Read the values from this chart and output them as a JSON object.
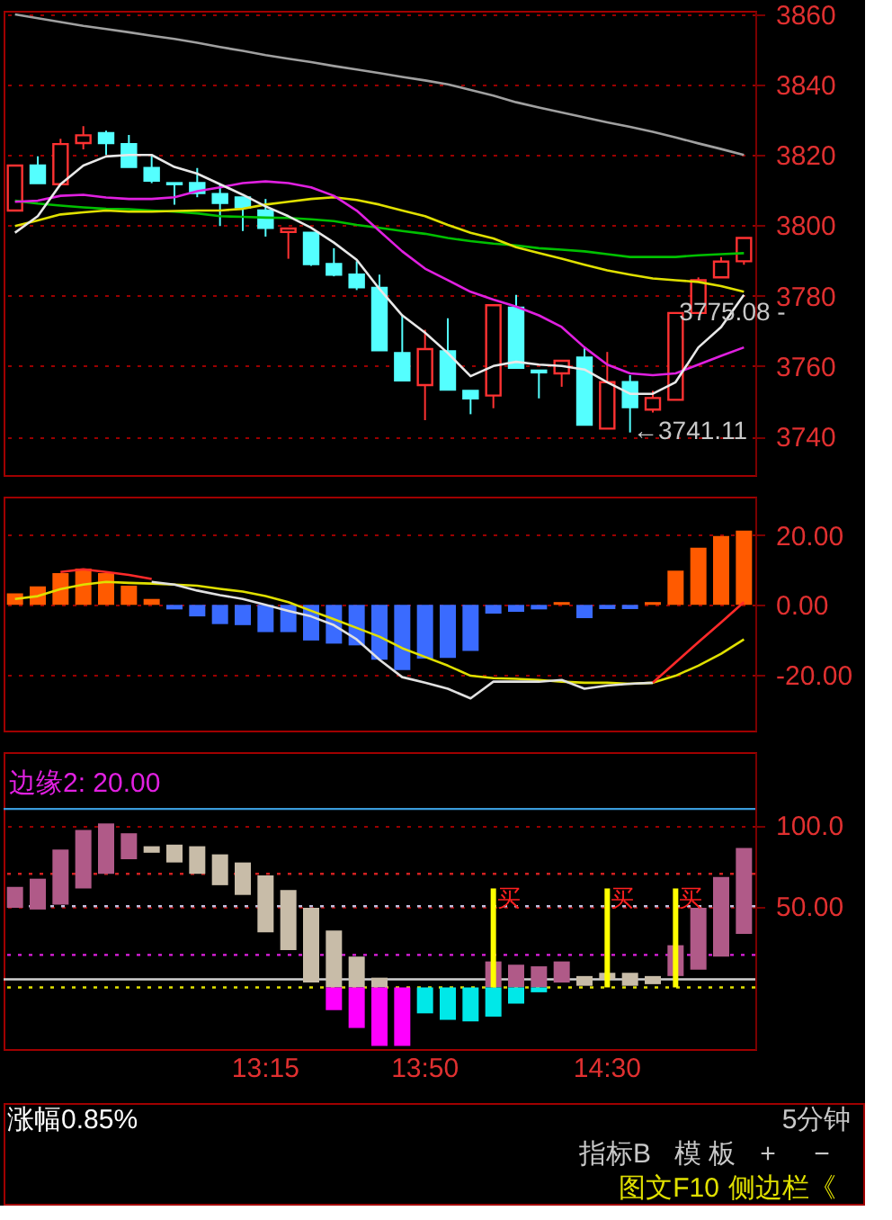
{
  "chart_data": [
    {
      "type": "candlestick",
      "categories": [
        null,
        null,
        null,
        null,
        null,
        null,
        null,
        null,
        null,
        null,
        null,
        null,
        null,
        null,
        null,
        null,
        null,
        null,
        null,
        null,
        null,
        null,
        null,
        null,
        null,
        null,
        null,
        null,
        null,
        null,
        null,
        null,
        null
      ],
      "ohlc": [
        [
          3804.2,
          3817.0,
          3804.2,
          3817.0
        ],
        [
          3817.0,
          3819.6,
          3812.0,
          3812.0
        ],
        [
          3811.7,
          3824.6,
          3811.7,
          3823.1
        ],
        [
          3823.4,
          3828.2,
          3821.6,
          3825.6
        ],
        [
          3826.2,
          3826.9,
          3820.0,
          3823.4
        ],
        [
          3823.1,
          3825.7,
          3816.6,
          3816.6
        ],
        [
          3816.3,
          3820.0,
          3812.0,
          3812.7
        ],
        [
          3812.0,
          3812.0,
          3805.9,
          3811.7
        ],
        [
          3812.0,
          3816.3,
          3808.0,
          3809.2
        ],
        [
          3808.9,
          3811.7,
          3799.8,
          3806.4
        ],
        [
          3807.9,
          3807.9,
          3798.4,
          3805.1
        ],
        [
          3804.2,
          3807.5,
          3796.8,
          3799.3
        ],
        [
          3798.1,
          3799.1,
          3790.5,
          3799.1
        ],
        [
          3797.9,
          3797.9,
          3788.5,
          3789.0
        ],
        [
          3789.0,
          3793.5,
          3785.5,
          3786.0
        ],
        [
          3786.0,
          3789.8,
          3781.6,
          3782.4
        ],
        [
          3782.2,
          3786.0,
          3764.5,
          3764.5
        ],
        [
          3763.7,
          3774.4,
          3755.9,
          3755.9
        ],
        [
          3754.6,
          3770.3,
          3744.6,
          3764.8
        ],
        [
          3764.2,
          3773.6,
          3753.3,
          3753.3
        ],
        [
          3752.9,
          3752.9,
          3746.3,
          3750.8
        ],
        [
          3751.6,
          3777.3,
          3748.0,
          3777.3
        ],
        [
          3776.6,
          3780.2,
          3759.5,
          3759.5
        ],
        [
          3758.7,
          3758.7,
          3750.8,
          3758.2
        ],
        [
          3757.9,
          3761.5,
          3754.1,
          3761.5
        ],
        [
          3762.4,
          3765.3,
          3743.3,
          3743.3
        ],
        [
          3742.2,
          3764.0,
          3742.2,
          3755.4
        ],
        [
          3755.4,
          3757.4,
          3741.11,
          3748.3
        ],
        [
          3747.6,
          3752.9,
          3746.8,
          3750.9
        ],
        [
          3750.4,
          3775.08,
          3750.4,
          3775.08
        ],
        [
          3775.08,
          3785.2,
          3775.08,
          3784.4
        ],
        [
          3785.2,
          3791.0,
          3785.2,
          3789.7
        ],
        [
          3789.8,
          3796.4,
          3788.8,
          3796.4
        ]
      ],
      "colors": [
        "#ff3232",
        "#54ffff",
        "#ff3232",
        "#ff3232",
        "#54ffff",
        "#54ffff",
        "#54ffff",
        "#54ffff",
        "#54ffff",
        "#54ffff",
        "#54ffff",
        "#54ffff",
        "#ff3232",
        "#54ffff",
        "#54ffff",
        "#54ffff",
        "#54ffff",
        "#54ffff",
        "#ff3232",
        "#54ffff",
        "#54ffff",
        "#ff3232",
        "#54ffff",
        "#54ffff",
        "#ff3232",
        "#54ffff",
        "#ff3232",
        "#54ffff",
        "#ff3232",
        "#ff3232",
        "#ff3232",
        "#ff3232",
        "#ff3232"
      ],
      "series": [
        {
          "type": "line",
          "color": "#a0a0a0",
          "values": [
            3860.0,
            3858.9,
            3857.8,
            3856.7,
            3855.8,
            3854.9,
            3853.9,
            3853.0,
            3851.9,
            3850.7,
            3849.6,
            3848.4,
            3847.4,
            3846.4,
            3845.3,
            3844.3,
            3843.3,
            3842.2,
            3841.2,
            3840.1,
            3838.5,
            3836.9,
            3835.0,
            3833.5,
            3832.1,
            3830.7,
            3829.3,
            3828.0,
            3826.6,
            3825.0,
            3823.3,
            3821.7,
            3820.0
          ]
        },
        {
          "type": "line",
          "color": "#00c000",
          "values": [
            3807.0,
            3806.2,
            3805.6,
            3805.1,
            3804.7,
            3804.6,
            3804.2,
            3803.9,
            3803.4,
            3802.6,
            3802.4,
            3802.2,
            3802.1,
            3801.7,
            3801.2,
            3800.1,
            3799.3,
            3798.4,
            3797.6,
            3796.4,
            3795.5,
            3794.8,
            3794.3,
            3793.5,
            3793.1,
            3792.6,
            3791.8,
            3791.0,
            3791.0,
            3791.0,
            3791.5,
            3791.8,
            3792.1
          ]
        },
        {
          "type": "line",
          "color": "#e0e000",
          "values": [
            3799.8,
            3801.4,
            3803.1,
            3803.7,
            3804.2,
            3803.9,
            3803.9,
            3804.1,
            3804.2,
            3804.2,
            3804.7,
            3805.9,
            3806.7,
            3807.5,
            3808.0,
            3807.2,
            3805.9,
            3804.2,
            3802.6,
            3800.1,
            3797.9,
            3796.3,
            3793.8,
            3792.1,
            3790.5,
            3788.8,
            3787.2,
            3786.0,
            3784.9,
            3784.4,
            3783.9,
            3782.7,
            3781.1
          ]
        },
        {
          "type": "line",
          "color": "#e020e0",
          "values": [
            3806.7,
            3807.0,
            3808.4,
            3808.7,
            3807.9,
            3807.5,
            3807.5,
            3808.0,
            3809.7,
            3810.8,
            3812.0,
            3812.5,
            3812.0,
            3810.8,
            3808.4,
            3804.2,
            3798.4,
            3792.6,
            3787.7,
            3784.4,
            3781.1,
            3778.9,
            3776.9,
            3774.4,
            3771.1,
            3765.3,
            3760.4,
            3757.9,
            3757.4,
            3757.9,
            3760.4,
            3762.9,
            3765.3
          ]
        },
        {
          "type": "line",
          "color": "#e8e8e8",
          "values": [
            3797.9,
            3802.6,
            3811.7,
            3817.0,
            3819.6,
            3820.0,
            3820.0,
            3816.6,
            3814.7,
            3811.7,
            3808.7,
            3805.4,
            3802.6,
            3799.3,
            3795.1,
            3790.2,
            3781.9,
            3774.4,
            3769.5,
            3763.7,
            3757.1,
            3760.0,
            3761.2,
            3760.4,
            3760.0,
            3759.0,
            3755.4,
            3752.1,
            3752.1,
            3755.4,
            3765.3,
            3771.1,
            3780.2
          ]
        }
      ],
      "ylim": [
        3729,
        3861
      ],
      "yticks": [
        3740,
        3760,
        3780,
        3800,
        3820,
        3840,
        3860
      ],
      "grid": "y",
      "tick_labels": "y",
      "annotations": [
        "←3741.11",
        {
          "text": "3775.08 -",
          "y": 3775.08
        }
      ]
    },
    {
      "type": "bar",
      "categories": [
        null,
        null,
        null,
        null,
        null,
        null,
        null,
        null,
        null,
        null,
        null,
        null,
        null,
        null,
        null,
        null,
        null,
        null,
        null,
        null,
        null,
        null,
        null,
        null,
        null,
        null,
        null,
        null,
        null,
        null,
        null,
        null,
        null
      ],
      "values": [
        3.3,
        5.3,
        9.1,
        10.4,
        9.1,
        5.5,
        1.7,
        -1.3,
        -3.3,
        -5.5,
        -5.8,
        -7.8,
        -7.8,
        -10.2,
        -11.1,
        -11.6,
        -15.7,
        -18.7,
        -15.4,
        -15.2,
        -13.2,
        -2.5,
        -2.0,
        -1.3,
        0.8,
        -3.8,
        -1.2,
        -1.2,
        0.8,
        9.8,
        16.4,
        19.7,
        21.3
      ],
      "colors": [
        "#ff5a00",
        "#ff5a00",
        "#ff5a00",
        "#ff5a00",
        "#ff5a00",
        "#ff5a00",
        "#ff5a00",
        "#3a6bff",
        "#3a6bff",
        "#3a6bff",
        "#3a6bff",
        "#3a6bff",
        "#3a6bff",
        "#3a6bff",
        "#3a6bff",
        "#3a6bff",
        "#3a6bff",
        "#3a6bff",
        "#3a6bff",
        "#3a6bff",
        "#3a6bff",
        "#3a6bff",
        "#3a6bff",
        "#3a6bff",
        "#ff5a00",
        "#3a6bff",
        "#3a6bff",
        "#3a6bff",
        "#ff5a00",
        "#ff5a00",
        "#ff5a00",
        "#ff5a00",
        "#ff5a00"
      ],
      "series": [
        {
          "type": "line",
          "color": "#e0e000",
          "values": [
            1.7,
            2.5,
            4.5,
            5.8,
            6.6,
            6.3,
            6.1,
            5.8,
            5.5,
            4.6,
            3.8,
            2.5,
            0.8,
            -1.7,
            -4.1,
            -6.6,
            -9.1,
            -12.4,
            -14.9,
            -17.4,
            -20.3,
            -21.0,
            -21.2,
            -21.5,
            -22.0,
            -22.3,
            -22.3,
            -22.6,
            -22.3,
            -20.3,
            -17.4,
            -14.0,
            -9.9
          ]
        },
        {
          "type": "line",
          "color": "#e0e0e0",
          "values": [
            null,
            null,
            null,
            null,
            null,
            null,
            6.6,
            5.8,
            4.1,
            2.8,
            1.7,
            0.0,
            -1.7,
            -3.3,
            -5.8,
            -9.9,
            -15.7,
            -20.7,
            -22.3,
            -24.0,
            -26.8,
            -22.0,
            -22.0,
            -22.0,
            -21.5,
            -24.0,
            -23.1,
            -22.6,
            -22.3,
            null,
            null,
            null,
            null
          ]
        },
        {
          "type": "line",
          "color": "#ff2a2a",
          "values": [
            null,
            null,
            9.4,
            10.2,
            9.4,
            8.6,
            7.4,
            null,
            null,
            null,
            null,
            null,
            null,
            null,
            null,
            null,
            null,
            null,
            null,
            null,
            null,
            null,
            null,
            null,
            null,
            null,
            null,
            null,
            -22.3,
            -16.5,
            -10.7,
            -5.0,
            0.8
          ]
        }
      ],
      "ylim": [
        -36,
        31
      ],
      "yticks": [
        {
          "value": 20,
          "label": "20.00"
        },
        {
          "value": 0,
          "label": "0.00"
        },
        {
          "value": -20,
          "label": "-20.00"
        }
      ],
      "grid": "y",
      "tick_labels": "y"
    },
    {
      "type": "bar",
      "categories": [
        null,
        null,
        null,
        null,
        null,
        null,
        null,
        null,
        null,
        null,
        null,
        "13:15",
        null,
        null,
        null,
        null,
        null,
        null,
        "13:50",
        null,
        null,
        null,
        null,
        null,
        null,
        null,
        "14:30",
        null,
        null,
        null,
        null,
        null,
        null
      ],
      "series": [
        {
          "type": "bar",
          "base": [
            49,
            48,
            51,
            61,
            70,
            79,
            83,
            77,
            70,
            63,
            57,
            34,
            23,
            3,
            0,
            0,
            0,
            null,
            null,
            null,
            null,
            0,
            0,
            0,
            3,
            1,
            5,
            1,
            2,
            7,
            11,
            19,
            33
          ],
          "values": [
            13,
            19,
            34,
            36,
            31,
            16,
            4,
            11,
            17,
            19,
            20,
            35,
            37,
            46,
            35,
            19,
            6,
            null,
            null,
            null,
            null,
            16,
            14,
            13,
            13,
            6,
            4,
            8,
            5,
            19,
            38,
            49,
            53
          ],
          "colors": [
            "#b05a88",
            "#b05a88",
            "#b05a88",
            "#b05a88",
            "#b05a88",
            "#b05a88",
            "#c8bca8",
            "#c8bca8",
            "#c8bca8",
            "#c8bca8",
            "#c8bca8",
            "#c8bca8",
            "#c8bca8",
            "#c8bca8",
            "#c8bca8",
            "#c8bca8",
            "#c8bca8",
            null,
            null,
            null,
            null,
            "#b05a88",
            "#b05a88",
            "#b05a88",
            "#b05a88",
            "#c8bca8",
            "#c8bca8",
            "#c8bca8",
            "#c8bca8",
            "#b05a88",
            "#b05a88",
            "#b05a88",
            "#b05a88"
          ]
        },
        {
          "type": "bar",
          "base": [
            null,
            null,
            null,
            null,
            null,
            null,
            null,
            null,
            null,
            null,
            null,
            null,
            null,
            null,
            0,
            0,
            0,
            0,
            0,
            0,
            0,
            0,
            0,
            0,
            null,
            null,
            null,
            null,
            null,
            null,
            null,
            null,
            null
          ],
          "values": [
            null,
            null,
            null,
            null,
            null,
            null,
            null,
            null,
            null,
            null,
            null,
            null,
            null,
            null,
            -14,
            -25,
            -36,
            -36,
            -16,
            -20,
            -21,
            -18,
            -10,
            -3,
            null,
            null,
            null,
            null,
            null,
            null,
            null,
            null,
            null
          ],
          "colors": [
            null,
            null,
            null,
            null,
            null,
            null,
            null,
            null,
            null,
            null,
            null,
            null,
            null,
            null,
            "#ff00ff",
            "#ff00ff",
            "#ff00ff",
            "#ff00ff",
            "#00e8e8",
            "#00e8e8",
            "#00e8e8",
            "#00e8e8",
            "#00e8e8",
            "#00e8e8",
            null,
            null,
            null,
            null,
            null,
            null,
            null,
            null,
            null
          ]
        },
        {
          "type": "bar",
          "color": "#ffff00",
          "values": [
            null,
            null,
            null,
            null,
            null,
            null,
            null,
            null,
            null,
            null,
            null,
            null,
            null,
            null,
            null,
            null,
            null,
            null,
            null,
            null,
            null,
            61,
            null,
            null,
            null,
            null,
            61,
            null,
            null,
            61,
            null,
            null,
            null
          ],
          "value_labels": [
            null,
            null,
            null,
            null,
            null,
            null,
            null,
            null,
            null,
            null,
            null,
            null,
            null,
            null,
            null,
            null,
            null,
            null,
            null,
            null,
            null,
            "买",
            null,
            null,
            null,
            null,
            "买",
            null,
            null,
            "买",
            null,
            null,
            null
          ]
        }
      ],
      "ref_lines": [
        {
          "axis": "y",
          "value": 110,
          "color": "#3a9ad9",
          "line_style": "solid"
        },
        {
          "axis": "y",
          "value": 70,
          "color": "#d02020",
          "line_style": "dotted"
        },
        {
          "axis": "y",
          "value": 50,
          "color": "#c0c0e0",
          "line_style": "dotted"
        },
        {
          "axis": "y",
          "value": 20,
          "color": "#e020e0",
          "line_style": "dotted"
        },
        {
          "axis": "y",
          "value": 5,
          "color": "#d0d0d0",
          "line_style": "solid"
        },
        {
          "axis": "y",
          "value": 0,
          "color": "#e0e000",
          "line_style": "dotted"
        }
      ],
      "ylim": [
        -38,
        145
      ],
      "yticks": [
        {
          "value": 100,
          "label": "100.0"
        },
        {
          "value": 50,
          "label": "50.00"
        }
      ],
      "grid": "y",
      "annotations": [
        "边缘2: 20.00"
      ]
    },
    {
      "type": "other",
      "annotations": [
        "涨幅0.85%",
        "5分钟",
        "指标B",
        "模 板",
        "+",
        "−",
        "图文F10",
        "侧边栏《"
      ]
    }
  ]
}
